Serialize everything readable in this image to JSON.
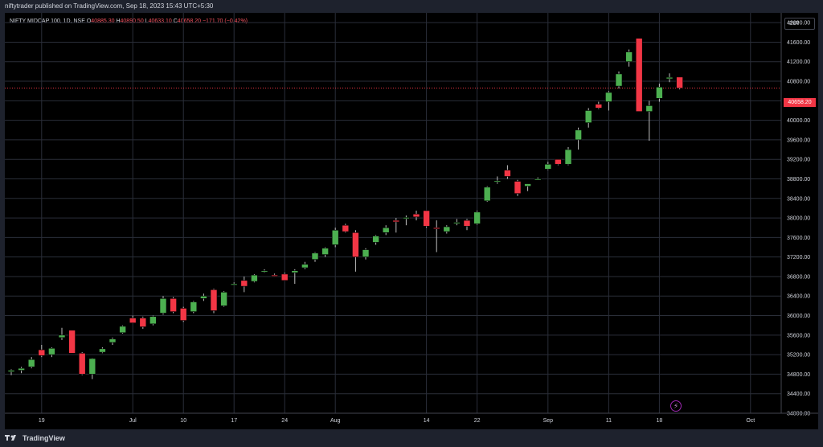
{
  "header": {
    "publisher_text": "niftytrader published on TradingView.com, Sep 18, 2023 15:43 UTC+5:30"
  },
  "legend": {
    "symbol": "NIFTY MIDCAP 100, 1D, NSE",
    "open_label": "O",
    "open": "40885.30",
    "high_label": "H",
    "high": "40890.50",
    "low_label": "L",
    "low": "40633.10",
    "close_label": "C",
    "close": "40658.20",
    "change": "−171.70 (−0.42%)"
  },
  "currency": "INR",
  "last_price_tag": "40658.20",
  "footer": {
    "brand": "TradingView"
  },
  "colors": {
    "up": "#4caf50",
    "down": "#f23645",
    "grid": "#2a2e39",
    "background": "#000000"
  },
  "chart_data": {
    "type": "candlestick",
    "y_ticks": [
      34000,
      34400,
      34800,
      35200,
      35600,
      36000,
      36400,
      36800,
      37200,
      37600,
      38000,
      38400,
      38800,
      39200,
      39600,
      40000,
      40400,
      40800,
      41200,
      41600,
      42000
    ],
    "y_tick_labels": [
      "34000.00",
      "34400.00",
      "34800.00",
      "35200.00",
      "35600.00",
      "36000.00",
      "36400.00",
      "36800.00",
      "37200.00",
      "37600.00",
      "38000.00",
      "38400.00",
      "38800.00",
      "39200.00",
      "39600.00",
      "40000.00",
      "40400.00",
      "40800.00",
      "41200.00",
      "41600.00",
      "42000.00"
    ],
    "ylim": [
      34000,
      42200
    ],
    "x_labels": [
      {
        "label": "19",
        "index": 3
      },
      {
        "label": "Jul",
        "index": 12
      },
      {
        "label": "10",
        "index": 17
      },
      {
        "label": "17",
        "index": 22
      },
      {
        "label": "24",
        "index": 27
      },
      {
        "label": "Aug",
        "index": 32
      },
      {
        "label": "14",
        "index": 41
      },
      {
        "label": "22",
        "index": 46
      },
      {
        "label": "Sep",
        "index": 53
      },
      {
        "label": "11",
        "index": 59
      },
      {
        "label": "18",
        "index": 64
      },
      {
        "label": "Oct",
        "index": 73
      }
    ],
    "candles": [
      {
        "o": 34850,
        "h": 34900,
        "l": 34780,
        "c": 34880
      },
      {
        "o": 34880,
        "h": 34950,
        "l": 34820,
        "c": 34920
      },
      {
        "o": 34950,
        "h": 35150,
        "l": 34920,
        "c": 35100
      },
      {
        "o": 35300,
        "h": 35400,
        "l": 35150,
        "c": 35180
      },
      {
        "o": 35200,
        "h": 35350,
        "l": 35150,
        "c": 35330
      },
      {
        "o": 35550,
        "h": 35750,
        "l": 35500,
        "c": 35600
      },
      {
        "o": 35700,
        "h": 35700,
        "l": 35230,
        "c": 35230
      },
      {
        "o": 35230,
        "h": 35250,
        "l": 34780,
        "c": 34800
      },
      {
        "o": 34800,
        "h": 35130,
        "l": 34700,
        "c": 35120
      },
      {
        "o": 35250,
        "h": 35350,
        "l": 35230,
        "c": 35320
      },
      {
        "o": 35450,
        "h": 35550,
        "l": 35400,
        "c": 35520
      },
      {
        "o": 35650,
        "h": 35800,
        "l": 35630,
        "c": 35780
      },
      {
        "o": 35950,
        "h": 36000,
        "l": 35850,
        "c": 35850
      },
      {
        "o": 35950,
        "h": 35980,
        "l": 35730,
        "c": 35770
      },
      {
        "o": 35830,
        "h": 36000,
        "l": 35800,
        "c": 35980
      },
      {
        "o": 36050,
        "h": 36400,
        "l": 36020,
        "c": 36350
      },
      {
        "o": 36350,
        "h": 36380,
        "l": 36050,
        "c": 36080
      },
      {
        "o": 36150,
        "h": 36180,
        "l": 35870,
        "c": 35900
      },
      {
        "o": 36080,
        "h": 36300,
        "l": 36050,
        "c": 36280
      },
      {
        "o": 36350,
        "h": 36450,
        "l": 36300,
        "c": 36400
      },
      {
        "o": 36530,
        "h": 36550,
        "l": 36050,
        "c": 36100
      },
      {
        "o": 36200,
        "h": 36500,
        "l": 36180,
        "c": 36480
      },
      {
        "o": 36650,
        "h": 36680,
        "l": 36620,
        "c": 36650
      },
      {
        "o": 36720,
        "h": 36800,
        "l": 36480,
        "c": 36600
      },
      {
        "o": 36700,
        "h": 36850,
        "l": 36680,
        "c": 36830
      },
      {
        "o": 36900,
        "h": 36950,
        "l": 36880,
        "c": 36920
      },
      {
        "o": 36830,
        "h": 36860,
        "l": 36800,
        "c": 36810
      },
      {
        "o": 36850,
        "h": 36880,
        "l": 36720,
        "c": 36720
      },
      {
        "o": 36880,
        "h": 36950,
        "l": 36650,
        "c": 36920
      },
      {
        "o": 36980,
        "h": 37100,
        "l": 36950,
        "c": 37050
      },
      {
        "o": 37150,
        "h": 37300,
        "l": 37100,
        "c": 37280
      },
      {
        "o": 37250,
        "h": 37400,
        "l": 37200,
        "c": 37380
      },
      {
        "o": 37450,
        "h": 37800,
        "l": 37400,
        "c": 37750
      },
      {
        "o": 37850,
        "h": 37880,
        "l": 37700,
        "c": 37720
      },
      {
        "o": 37700,
        "h": 37750,
        "l": 36900,
        "c": 37200
      },
      {
        "o": 37200,
        "h": 37380,
        "l": 37150,
        "c": 37350
      },
      {
        "o": 37500,
        "h": 37650,
        "l": 37450,
        "c": 37630
      },
      {
        "o": 37700,
        "h": 37850,
        "l": 37650,
        "c": 37800
      },
      {
        "o": 37950,
        "h": 38000,
        "l": 37700,
        "c": 37920
      },
      {
        "o": 38000,
        "h": 38050,
        "l": 37850,
        "c": 38010
      },
      {
        "o": 38080,
        "h": 38150,
        "l": 37950,
        "c": 38020
      },
      {
        "o": 38150,
        "h": 38150,
        "l": 37800,
        "c": 37830
      },
      {
        "o": 37800,
        "h": 37950,
        "l": 37300,
        "c": 37780
      },
      {
        "o": 37720,
        "h": 37850,
        "l": 37680,
        "c": 37820
      },
      {
        "o": 37900,
        "h": 37980,
        "l": 37850,
        "c": 37910
      },
      {
        "o": 37950,
        "h": 37980,
        "l": 37750,
        "c": 37830
      },
      {
        "o": 37880,
        "h": 38150,
        "l": 37860,
        "c": 38120
      },
      {
        "o": 38350,
        "h": 38650,
        "l": 38330,
        "c": 38630
      },
      {
        "o": 38750,
        "h": 38850,
        "l": 38700,
        "c": 38760
      },
      {
        "o": 38980,
        "h": 39080,
        "l": 38800,
        "c": 38850
      },
      {
        "o": 38750,
        "h": 38780,
        "l": 38450,
        "c": 38500
      },
      {
        "o": 38650,
        "h": 38700,
        "l": 38550,
        "c": 38700
      },
      {
        "o": 38800,
        "h": 38830,
        "l": 38780,
        "c": 38800
      },
      {
        "o": 39000,
        "h": 39150,
        "l": 38980,
        "c": 39100
      },
      {
        "o": 39200,
        "h": 39200,
        "l": 39080,
        "c": 39100
      },
      {
        "o": 39100,
        "h": 39450,
        "l": 39080,
        "c": 39400
      },
      {
        "o": 39600,
        "h": 39850,
        "l": 39400,
        "c": 39800
      },
      {
        "o": 39950,
        "h": 40250,
        "l": 39850,
        "c": 40200
      },
      {
        "o": 40330,
        "h": 40380,
        "l": 40230,
        "c": 40250
      },
      {
        "o": 40380,
        "h": 40600,
        "l": 40200,
        "c": 40570
      },
      {
        "o": 40700,
        "h": 41000,
        "l": 40650,
        "c": 40950
      },
      {
        "o": 41200,
        "h": 41450,
        "l": 41100,
        "c": 41400
      },
      {
        "o": 41680,
        "h": 41680,
        "l": 40180,
        "c": 40180
      },
      {
        "o": 40180,
        "h": 40400,
        "l": 39580,
        "c": 40300
      },
      {
        "o": 40450,
        "h": 40750,
        "l": 40380,
        "c": 40680
      },
      {
        "o": 40850,
        "h": 40960,
        "l": 40780,
        "c": 40880
      },
      {
        "o": 40885.3,
        "h": 40890.5,
        "l": 40633.1,
        "c": 40658.2
      }
    ]
  }
}
